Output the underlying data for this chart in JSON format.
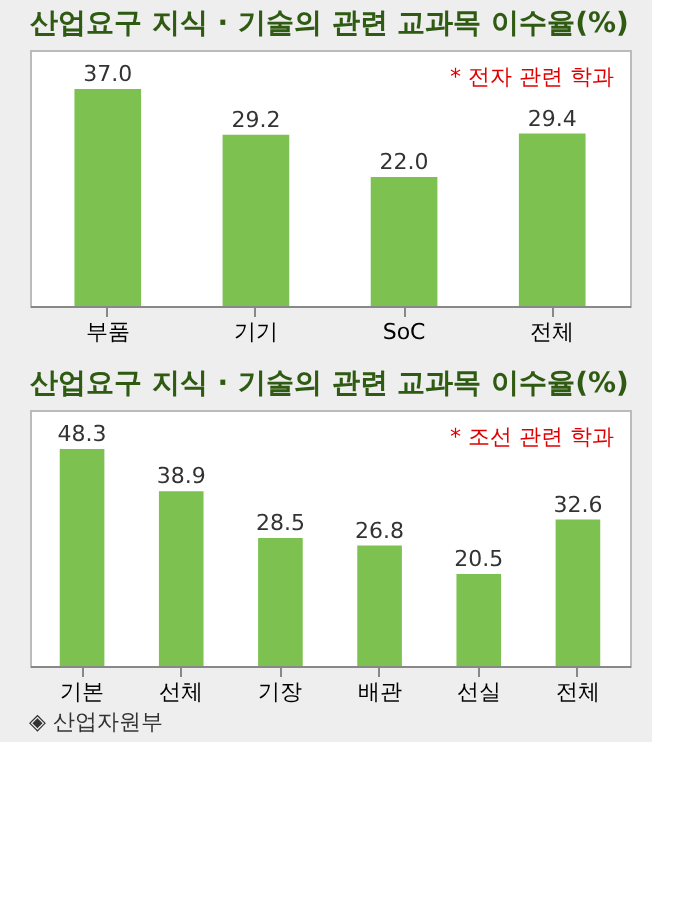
{
  "chart_data": [
    {
      "type": "bar",
      "title": "산업요구 지식 · 기술의 관련 교과목 이수율(%)",
      "categories": [
        "부품",
        "기기",
        "SoC",
        "전체"
      ],
      "values": [
        37.0,
        29.2,
        22.0,
        29.4
      ],
      "value_labels": [
        "37.0",
        "29.2",
        "22.0",
        "29.4"
      ],
      "color": "#7dc151",
      "annotations": [
        "* 전자 관련 학과"
      ]
    },
    {
      "type": "bar",
      "title": "산업요구 지식 · 기술의 관련 교과목 이수율(%)",
      "categories": [
        "기본",
        "선체",
        "기장",
        "배관",
        "선실",
        "전체"
      ],
      "values": [
        48.3,
        38.9,
        28.5,
        26.8,
        20.5,
        32.6
      ],
      "value_labels": [
        "48.3",
        "38.9",
        "28.5",
        "26.8",
        "20.5",
        "32.6"
      ],
      "color": "#7dc151",
      "annotations": [
        "* 조선 관련 학과",
        "◈ 산업자원부"
      ]
    }
  ]
}
